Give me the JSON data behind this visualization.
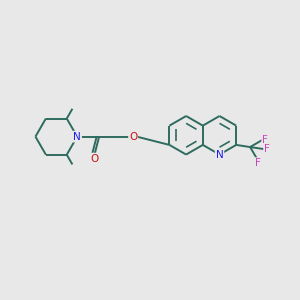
{
  "background_color": "#e8e8e8",
  "bond_color": "#2d6b5e",
  "N_color": "#1a1aee",
  "O_color": "#cc1111",
  "F_color": "#cc44bb",
  "fig_width": 3.0,
  "fig_height": 3.0,
  "dpi": 100,
  "lw": 1.4,
  "fs": 7.5,
  "xlim": [
    0,
    11
  ],
  "ylim": [
    0,
    10
  ]
}
